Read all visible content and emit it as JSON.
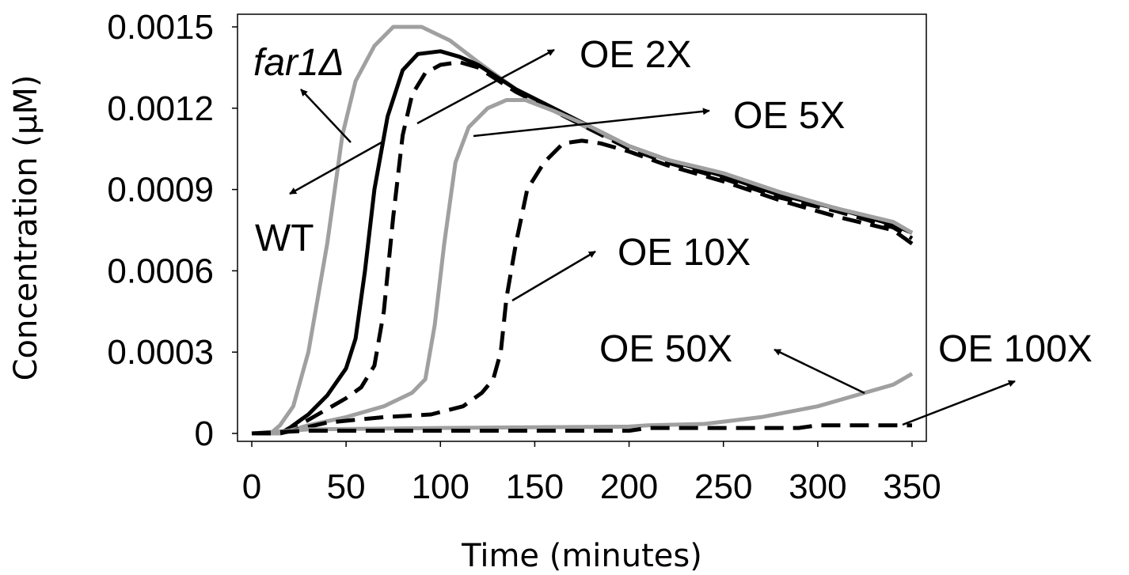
{
  "chart_data": {
    "type": "line",
    "xlabel": "Time (minutes)",
    "ylabel": "Concentration (μM)",
    "xlim": [
      0,
      350
    ],
    "ylim": [
      0,
      0.0015
    ],
    "x_ticks": [
      "0",
      "50",
      "100",
      "150",
      "200",
      "250",
      "300",
      "350"
    ],
    "y_ticks": [
      "0",
      "0.0003",
      "0.0006",
      "0.0009",
      "0.0012",
      "0.0015"
    ],
    "grid": false,
    "legend": "none",
    "series": [
      {
        "name": "far1Δ",
        "color": "#a0a0a0",
        "style": "solid",
        "points": [
          [
            0,
            0
          ],
          [
            10,
            0
          ],
          [
            15,
            3e-05
          ],
          [
            22,
            0.0001
          ],
          [
            30,
            0.0003
          ],
          [
            40,
            0.0007
          ],
          [
            48,
            0.0011
          ],
          [
            55,
            0.0013
          ],
          [
            65,
            0.00143
          ],
          [
            75,
            0.0015
          ],
          [
            90,
            0.0015
          ],
          [
            105,
            0.00145
          ],
          [
            120,
            0.00137
          ],
          [
            140,
            0.00127
          ],
          [
            160,
            0.00119
          ],
          [
            180,
            0.00112
          ],
          [
            200,
            0.00106
          ],
          [
            220,
            0.00101
          ],
          [
            250,
            0.00096
          ],
          [
            280,
            0.00089
          ],
          [
            310,
            0.00083
          ],
          [
            340,
            0.00078
          ],
          [
            350,
            0.00074
          ]
        ]
      },
      {
        "name": "WT",
        "color": "#000000",
        "style": "solid",
        "points": [
          [
            0,
            0
          ],
          [
            15,
            0
          ],
          [
            20,
            2e-05
          ],
          [
            30,
            7e-05
          ],
          [
            40,
            0.00014
          ],
          [
            50,
            0.00024
          ],
          [
            55,
            0.00035
          ],
          [
            60,
            0.0006
          ],
          [
            65,
            0.0009
          ],
          [
            72,
            0.00117
          ],
          [
            80,
            0.00134
          ],
          [
            88,
            0.0014
          ],
          [
            100,
            0.00141
          ],
          [
            110,
            0.00139
          ],
          [
            120,
            0.00136
          ],
          [
            140,
            0.00127
          ],
          [
            160,
            0.0012
          ],
          [
            180,
            0.00113
          ],
          [
            200,
            0.00106
          ],
          [
            220,
            0.00101
          ],
          [
            250,
            0.00095
          ],
          [
            280,
            0.00088
          ],
          [
            310,
            0.00083
          ],
          [
            340,
            0.00077
          ],
          [
            350,
            0.00074
          ]
        ]
      },
      {
        "name": "OE 2X",
        "color": "#000000",
        "style": "dashed",
        "points": [
          [
            0,
            0
          ],
          [
            15,
            0
          ],
          [
            25,
            3e-05
          ],
          [
            40,
            9e-05
          ],
          [
            50,
            0.00013
          ],
          [
            58,
            0.00017
          ],
          [
            65,
            0.00025
          ],
          [
            70,
            0.00045
          ],
          [
            75,
            0.0008
          ],
          [
            80,
            0.0011
          ],
          [
            85,
            0.00125
          ],
          [
            92,
            0.00133
          ],
          [
            100,
            0.00136
          ],
          [
            110,
            0.00137
          ],
          [
            120,
            0.00135
          ],
          [
            140,
            0.00126
          ],
          [
            160,
            0.00119
          ],
          [
            180,
            0.00112
          ],
          [
            200,
            0.00105
          ],
          [
            220,
            0.001
          ],
          [
            250,
            0.00094
          ],
          [
            280,
            0.00087
          ],
          [
            310,
            0.00082
          ],
          [
            340,
            0.00076
          ],
          [
            350,
            0.00072
          ]
        ]
      },
      {
        "name": "OE 5X",
        "color": "#a0a0a0",
        "style": "solid",
        "points": [
          [
            0,
            0
          ],
          [
            15,
            0
          ],
          [
            30,
            3e-05
          ],
          [
            50,
            6e-05
          ],
          [
            70,
            0.0001
          ],
          [
            85,
            0.00015
          ],
          [
            92,
            0.0002
          ],
          [
            97,
            0.0004
          ],
          [
            102,
            0.0007
          ],
          [
            108,
            0.001
          ],
          [
            115,
            0.00113
          ],
          [
            125,
            0.0012
          ],
          [
            135,
            0.00123
          ],
          [
            145,
            0.00123
          ],
          [
            160,
            0.00119
          ],
          [
            180,
            0.00113
          ],
          [
            200,
            0.00106
          ],
          [
            220,
            0.00101
          ],
          [
            250,
            0.00096
          ],
          [
            280,
            0.00089
          ],
          [
            310,
            0.00083
          ],
          [
            340,
            0.00078
          ],
          [
            350,
            0.00074
          ]
        ]
      },
      {
        "name": "OE 10X",
        "color": "#000000",
        "style": "dashed",
        "points": [
          [
            0,
            0
          ],
          [
            15,
            0
          ],
          [
            40,
            4e-05
          ],
          [
            70,
            6e-05
          ],
          [
            95,
            7e-05
          ],
          [
            112,
            0.0001
          ],
          [
            122,
            0.00015
          ],
          [
            128,
            0.0002
          ],
          [
            132,
            0.0003
          ],
          [
            135,
            0.0005
          ],
          [
            140,
            0.0007
          ],
          [
            146,
            0.0009
          ],
          [
            155,
            0.001
          ],
          [
            165,
            0.00107
          ],
          [
            175,
            0.00108
          ],
          [
            185,
            0.00107
          ],
          [
            200,
            0.00104
          ],
          [
            220,
            0.00099
          ],
          [
            250,
            0.00093
          ],
          [
            280,
            0.00086
          ],
          [
            310,
            0.0008
          ],
          [
            340,
            0.00075
          ],
          [
            350,
            0.0007
          ]
        ]
      },
      {
        "name": "OE 50X",
        "color": "#a0a0a0",
        "style": "solid",
        "points": [
          [
            0,
            0
          ],
          [
            30,
            1.5e-05
          ],
          [
            100,
            2e-05
          ],
          [
            200,
            2.5e-05
          ],
          [
            210,
            3e-05
          ],
          [
            240,
            3.5e-05
          ],
          [
            270,
            6e-05
          ],
          [
            300,
            0.0001
          ],
          [
            320,
            0.00014
          ],
          [
            340,
            0.00018
          ],
          [
            350,
            0.00022
          ]
        ]
      },
      {
        "name": "OE 100X",
        "color": "#000000",
        "style": "dashed",
        "points": [
          [
            0,
            0
          ],
          [
            30,
            1e-05
          ],
          [
            200,
            1e-05
          ],
          [
            210,
            2e-05
          ],
          [
            290,
            2e-05
          ],
          [
            300,
            3e-05
          ],
          [
            350,
            3e-05
          ]
        ]
      }
    ],
    "annotations": [
      {
        "text": "far1",
        "suffix": "Δ",
        "italic": true,
        "arrow": true
      },
      {
        "text": "WT",
        "arrow": true
      },
      {
        "text": "OE 2X",
        "arrow": true
      },
      {
        "text": "OE 5X",
        "arrow": true
      },
      {
        "text": "OE 10X",
        "arrow": true
      },
      {
        "text": "OE 50X",
        "arrow": true
      },
      {
        "text": "OE 100X",
        "arrow": true
      }
    ]
  }
}
